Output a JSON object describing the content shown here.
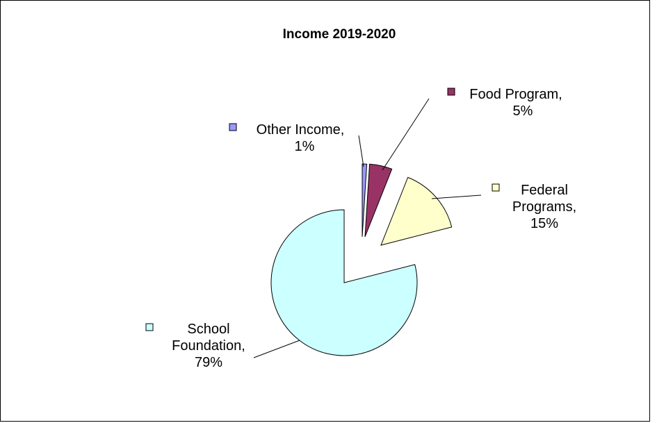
{
  "chart_data": {
    "type": "pie",
    "title": "Income 2019-2020",
    "slices": [
      {
        "name": "School Foundation",
        "value": 79,
        "label_lines": [
          "School",
          "Foundation,",
          "79%"
        ],
        "color": "#ccffff"
      },
      {
        "name": "Other Income",
        "value": 1,
        "label_lines": [
          "Other Income,",
          "1%"
        ],
        "color": "#9999ff"
      },
      {
        "name": "Food Program",
        "value": 5,
        "label_lines": [
          "Food Program,",
          "5%"
        ],
        "color": "#993366"
      },
      {
        "name": "Federal Programs",
        "value": 15,
        "label_lines": [
          "Federal",
          "Programs,",
          "15%"
        ],
        "color": "#ffffcc"
      }
    ],
    "legend": "none",
    "data_labels": "category-name-and-percent"
  }
}
